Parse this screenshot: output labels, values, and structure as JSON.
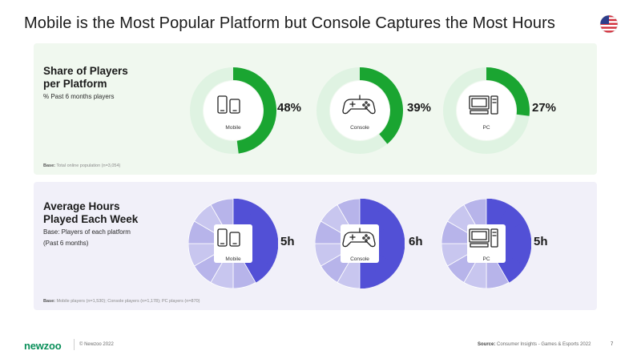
{
  "title": "Mobile is the Most Popular Platform but Console Captures the Most Hours",
  "flag_icon": "us-flag-icon",
  "share_panel": {
    "title_line1": "Share of Players",
    "title_line2": "per Platform",
    "subtitle": "% Past 6 months players",
    "base_label": "Base:",
    "base_text": "Total online population (n=3,054)"
  },
  "hours_panel": {
    "title_line1": "Average Hours",
    "title_line2": "Played Each Week",
    "subtitle_line1": "Base: Players of each platform",
    "subtitle_line2": "(Past 6 months)",
    "base_label": "Base:",
    "base_text": "Mobile players (n=1,530); Console players (n=1,178); PC players (n=870)"
  },
  "colors": {
    "share_fill": "#1aa531",
    "share_track": "#dff3e2",
    "hours_fill": "#5250d6",
    "hours_track": "#c8c6ef",
    "hours_track_light": "#b7b4ea",
    "brand": "#0a8f5a"
  },
  "chart_data": [
    {
      "type": "pie",
      "title": "Share of Players per Platform",
      "categories": [
        "Mobile",
        "Console",
        "PC"
      ],
      "values": [
        48,
        39,
        27
      ],
      "value_labels": [
        "48%",
        "39%",
        "27%"
      ],
      "unit": "%",
      "max": 100,
      "icons": [
        "smartphone-icon",
        "gamepad-icon",
        "desktop-pc-icon"
      ]
    },
    {
      "type": "pie",
      "title": "Average Hours Played Each Week",
      "categories": [
        "Mobile",
        "Console",
        "PC"
      ],
      "values": [
        5,
        6,
        5
      ],
      "value_labels": [
        "5h",
        "6h",
        "5h"
      ],
      "unit": "h",
      "max": 12,
      "icons": [
        "smartphone-icon",
        "gamepad-icon",
        "desktop-pc-icon"
      ]
    }
  ],
  "footer": {
    "logo": "newzoo",
    "copyright": "© Newzoo 2022",
    "source_label": "Source:",
    "source_text": "Consumer Insights - Games & Esports 2022",
    "page": "7"
  }
}
